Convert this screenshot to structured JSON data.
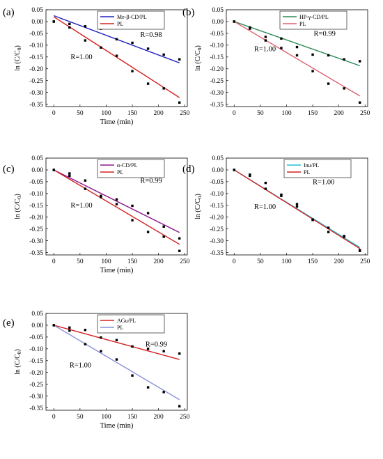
{
  "chart_data": [
    {
      "type": "scatter",
      "panel": "(a)",
      "xlabel": "Time (min)",
      "ylabel": "ln (C/C",
      "ylabel_sub": "0",
      "ylabel_end": ")",
      "xlim": [
        -15,
        255
      ],
      "ylim": [
        -0.36,
        0.05
      ],
      "xticks": [
        0,
        50,
        100,
        150,
        200,
        250
      ],
      "yticks": [
        0.05,
        0.0,
        -0.05,
        -0.1,
        -0.15,
        -0.2,
        -0.25,
        -0.3,
        -0.35
      ],
      "annotations": [
        {
          "text": "R=0.98",
          "x": 165,
          "y": -0.065
        },
        {
          "text": "R=1.00",
          "x": 32,
          "y": -0.16
        }
      ],
      "series": [
        {
          "name": "Me-β-CD/PL",
          "color": "#1f1fbf",
          "x": [
            0,
            30,
            60,
            90,
            120,
            150,
            180,
            210,
            240
          ],
          "y": [
            0.0,
            -0.01,
            -0.02,
            -0.03,
            -0.075,
            -0.09,
            -0.115,
            -0.14,
            -0.16
          ],
          "fit": [
            [
              0,
              0.025
            ],
            [
              240,
              -0.175
            ]
          ]
        },
        {
          "name": "PL",
          "color": "#d62020",
          "x": [
            0,
            30,
            60,
            90,
            120,
            150,
            180,
            210,
            240
          ],
          "y": [
            0.0,
            -0.025,
            -0.08,
            -0.11,
            -0.145,
            -0.21,
            -0.263,
            -0.283,
            -0.343
          ],
          "fit": [
            [
              0,
              0.02
            ],
            [
              240,
              -0.322
            ]
          ]
        }
      ]
    },
    {
      "type": "scatter",
      "panel": "(b)",
      "xlabel": "",
      "ylabel": "ln (C/C",
      "ylabel_sub": "0",
      "ylabel_end": ")",
      "xlim": [
        -15,
        255
      ],
      "ylim": [
        -0.36,
        0.05
      ],
      "xticks": [
        0,
        50,
        100,
        150,
        200,
        250
      ],
      "yticks": [
        0.05,
        0.0,
        -0.05,
        -0.1,
        -0.15,
        -0.2,
        -0.25,
        -0.3,
        -0.35
      ],
      "annotations": [
        {
          "text": "R=0.99",
          "x": 152,
          "y": -0.06
        },
        {
          "text": "R=1.00",
          "x": 38,
          "y": -0.125
        }
      ],
      "series": [
        {
          "name": "HP-γ-CD/PL",
          "color": "#2e8b57",
          "x": [
            0,
            30,
            60,
            90,
            120,
            150,
            180,
            210,
            240
          ],
          "y": [
            0.0,
            -0.025,
            -0.065,
            -0.072,
            -0.108,
            -0.14,
            -0.143,
            -0.16,
            -0.168
          ],
          "fit": [
            [
              0,
              0.0
            ],
            [
              240,
              -0.187
            ]
          ]
        },
        {
          "name": "PL",
          "color": "#e06070",
          "x": [
            0,
            30,
            60,
            90,
            120,
            150,
            180,
            210,
            240
          ],
          "y": [
            0.0,
            -0.03,
            -0.08,
            -0.112,
            -0.143,
            -0.21,
            -0.263,
            -0.283,
            -0.343
          ],
          "fit": [
            [
              0,
              0.0
            ],
            [
              240,
              -0.315
            ]
          ]
        }
      ]
    },
    {
      "type": "scatter",
      "panel": "(c)",
      "xlabel": "Time (min)",
      "ylabel": "ln (C/C",
      "ylabel_sub": "0",
      "ylabel_end": ")",
      "xlim": [
        -15,
        255
      ],
      "ylim": [
        -0.36,
        0.05
      ],
      "xticks": [
        0,
        50,
        100,
        150,
        200,
        250
      ],
      "yticks": [
        0.05,
        0.0,
        -0.05,
        -0.1,
        -0.15,
        -0.2,
        -0.25,
        -0.3,
        -0.35
      ],
      "annotations": [
        {
          "text": "R=0.99",
          "x": 165,
          "y": -0.055
        },
        {
          "text": "R=1.00",
          "x": 32,
          "y": -0.16
        }
      ],
      "series": [
        {
          "name": "α-CD/PL",
          "color": "#8b1a8b",
          "x": [
            0,
            30,
            60,
            90,
            120,
            150,
            180,
            210,
            240
          ],
          "y": [
            0.0,
            -0.015,
            -0.045,
            -0.11,
            -0.125,
            -0.152,
            -0.183,
            -0.24,
            -0.29
          ],
          "fit": [
            [
              0,
              0.0
            ],
            [
              240,
              -0.265
            ]
          ]
        },
        {
          "name": "PL",
          "color": "#d62020",
          "x": [
            0,
            30,
            60,
            90,
            120,
            150,
            180,
            210,
            240
          ],
          "y": [
            0.0,
            -0.025,
            -0.08,
            -0.115,
            -0.145,
            -0.213,
            -0.263,
            -0.283,
            -0.343
          ],
          "fit": [
            [
              0,
              0.0
            ],
            [
              240,
              -0.315
            ]
          ]
        }
      ]
    },
    {
      "type": "scatter",
      "panel": "(d)",
      "xlabel": "",
      "ylabel": "ln (C/C",
      "ylabel_sub": "0",
      "ylabel_end": ")",
      "xlim": [
        -15,
        255
      ],
      "ylim": [
        -0.36,
        0.05
      ],
      "xticks": [
        0,
        50,
        100,
        150,
        200,
        250
      ],
      "yticks": [
        0.05,
        0.0,
        -0.05,
        -0.1,
        -0.15,
        -0.2,
        -0.25,
        -0.3,
        -0.35
      ],
      "annotations": [
        {
          "text": "R=1.00",
          "x": 150,
          "y": -0.06
        },
        {
          "text": "R=1.00",
          "x": 38,
          "y": -0.165
        }
      ],
      "series": [
        {
          "name": "Inu/PL",
          "color": "#20c0d0",
          "x": [
            0,
            30,
            60,
            90,
            120,
            150,
            180,
            210,
            240
          ],
          "y": [
            0.0,
            -0.02,
            -0.055,
            -0.11,
            -0.145,
            -0.21,
            -0.245,
            -0.28,
            -0.34
          ],
          "fit": [
            [
              0,
              0.0
            ],
            [
              240,
              -0.328
            ]
          ]
        },
        {
          "name": "PL",
          "color": "#d62020",
          "x": [
            0,
            30,
            60,
            90,
            120,
            150,
            180,
            210,
            240
          ],
          "y": [
            0.0,
            -0.025,
            -0.08,
            -0.105,
            -0.155,
            -0.212,
            -0.263,
            -0.283,
            -0.343
          ],
          "fit": [
            [
              0,
              0.0
            ],
            [
              240,
              -0.333
            ]
          ]
        }
      ]
    },
    {
      "type": "scatter",
      "panel": "(e)",
      "xlabel": "Time (min)",
      "ylabel": "ln (C/C",
      "ylabel_sub": "0",
      "ylabel_end": ")",
      "xlim": [
        -15,
        255
      ],
      "ylim": [
        -0.36,
        0.05
      ],
      "xticks": [
        0,
        50,
        100,
        150,
        200,
        250
      ],
      "yticks": [
        0.05,
        0.0,
        -0.05,
        -0.1,
        -0.15,
        -0.2,
        -0.25,
        -0.3,
        -0.35
      ],
      "annotations": [
        {
          "text": "R=0.99",
          "x": 175,
          "y": -0.09
        },
        {
          "text": "R=1.00",
          "x": 30,
          "y": -0.178
        }
      ],
      "series": [
        {
          "name": "AGu/PL",
          "color": "#d62020",
          "x": [
            0,
            30,
            60,
            90,
            120,
            150,
            180,
            210,
            240
          ],
          "y": [
            0.0,
            -0.01,
            -0.02,
            -0.052,
            -0.063,
            -0.09,
            -0.1,
            -0.11,
            -0.12
          ],
          "fit": [
            [
              0,
              0.0
            ],
            [
              240,
              -0.145
            ]
          ]
        },
        {
          "name": "PL",
          "color": "#8890d8",
          "x": [
            0,
            30,
            60,
            90,
            120,
            150,
            180,
            210,
            240
          ],
          "y": [
            0.0,
            -0.023,
            -0.08,
            -0.11,
            -0.145,
            -0.213,
            -0.263,
            -0.283,
            -0.343
          ],
          "fit": [
            [
              0,
              0.0
            ],
            [
              240,
              -0.315
            ]
          ]
        }
      ]
    }
  ]
}
